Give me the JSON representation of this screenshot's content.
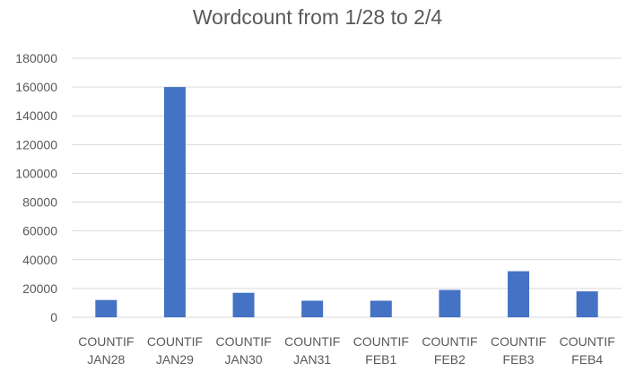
{
  "chart_data": {
    "type": "bar",
    "title": "Wordcount from 1/28 to 2/4",
    "categories": [
      [
        "COUNTIF",
        "JAN28"
      ],
      [
        "COUNTIF",
        "JAN29"
      ],
      [
        "COUNTIF",
        "JAN30"
      ],
      [
        "COUNTIF",
        "JAN31"
      ],
      [
        "COUNTIF",
        "FEB1"
      ],
      [
        "COUNTIF",
        "FEB2"
      ],
      [
        "COUNTIF",
        "FEB3"
      ],
      [
        "COUNTIF",
        "FEB4"
      ]
    ],
    "values": [
      12000,
      160000,
      17000,
      11500,
      11500,
      19000,
      32000,
      18000
    ],
    "ylim": [
      0,
      180000
    ],
    "yticks": [
      "0",
      "20000",
      "40000",
      "60000",
      "80000",
      "100000",
      "120000",
      "140000",
      "160000",
      "180000"
    ],
    "grid": true,
    "legend": "none",
    "bar_color": "#4472c4"
  }
}
